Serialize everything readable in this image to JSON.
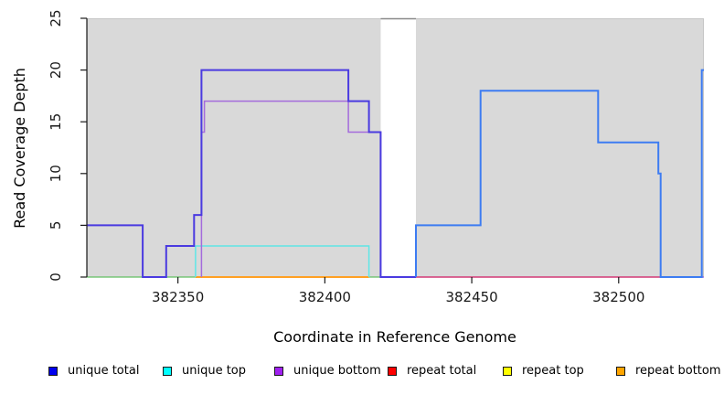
{
  "chart_data": {
    "type": "line",
    "subtype": "step-coverage",
    "title": "",
    "xlabel": "Coordinate in Reference Genome",
    "ylabel": "Read Coverage Depth",
    "xlim": [
      382319,
      382529
    ],
    "ylim": [
      0,
      25
    ],
    "x_ticks": [
      382350,
      382400,
      382450,
      382500
    ],
    "y_ticks": [
      0,
      5,
      10,
      15,
      20,
      25
    ],
    "panel_bg": "#D9D9D9",
    "border_color": "#C6C6C6",
    "axis_color": "#1A1A1A",
    "gap": {
      "from": 382419,
      "to": 382431,
      "color": "#FFFFFF",
      "top_line_color": "#8A8A8A"
    },
    "series": [
      {
        "name": "repeat top (overlaps unique top at 0)",
        "line_color": "#7CC87C",
        "width": 1.5,
        "segments": [
          [
            [
              382319,
              0
            ],
            [
              382356,
              0
            ]
          ],
          [
            [
              382415,
              0
            ],
            [
              382419,
              0
            ]
          ]
        ]
      },
      {
        "name": "repeat bottom",
        "line_color": "#FFA024",
        "width": 2,
        "segments": [
          [
            [
              382356,
              0
            ],
            [
              382415,
              0
            ]
          ]
        ]
      },
      {
        "name": "unique top",
        "line_color": "#5FE6E6",
        "width": 1.5,
        "segments": [
          [
            [
              382356,
              0
            ],
            [
              382356,
              3
            ],
            [
              382415,
              3
            ],
            [
              382415,
              0
            ]
          ]
        ]
      },
      {
        "name": "unique bottom",
        "line_color": "#A46BDC",
        "width": 1.5,
        "segments": [
          [
            [
              382358,
              0
            ],
            [
              382358,
              14
            ],
            [
              382359,
              14
            ],
            [
              382359,
              17
            ],
            [
              382408,
              17
            ],
            [
              382408,
              14
            ],
            [
              382419,
              14
            ],
            [
              382419,
              0
            ],
            [
              382529,
              0
            ]
          ]
        ]
      },
      {
        "name": "unique total (left block)",
        "line_color": "#4A3AE0",
        "width": 2,
        "segments": [
          [
            [
              382319,
              5
            ],
            [
              382338,
              5
            ],
            [
              382338,
              0
            ],
            [
              382346,
              0
            ],
            [
              382346,
              3
            ],
            [
              382355.5,
              3
            ],
            [
              382355.5,
              6
            ],
            [
              382358,
              6
            ],
            [
              382358,
              20
            ],
            [
              382408,
              20
            ],
            [
              382408,
              17
            ],
            [
              382415,
              17
            ],
            [
              382415,
              14
            ],
            [
              382419,
              14
            ],
            [
              382419,
              0
            ],
            [
              382431,
              0
            ]
          ]
        ]
      },
      {
        "name": "repeat total",
        "line_color": "#E0507A",
        "width": 1.5,
        "segments": [
          [
            [
              382431,
              0
            ],
            [
              382515,
              0
            ]
          ]
        ]
      },
      {
        "name": "unique total (right block)",
        "line_color": "#3D7CF2",
        "width": 2,
        "segments": [
          [
            [
              382431,
              0
            ],
            [
              382431,
              5
            ],
            [
              382453,
              5
            ],
            [
              382453,
              18
            ],
            [
              382493,
              18
            ],
            [
              382493,
              13
            ],
            [
              382513.5,
              13
            ],
            [
              382513.5,
              10
            ],
            [
              382514.3,
              10
            ],
            [
              382514.3,
              0
            ],
            [
              382528.3,
              0
            ],
            [
              382528.3,
              20
            ],
            [
              382529,
              20
            ]
          ]
        ]
      }
    ]
  },
  "legend": {
    "items": [
      {
        "label": "unique total",
        "color": "#0000EE"
      },
      {
        "label": "unique top",
        "color": "#00FFFF"
      },
      {
        "label": "unique bottom",
        "color": "#A020F0"
      },
      {
        "label": "repeat total",
        "color": "#FF0000"
      },
      {
        "label": "repeat top",
        "color": "#FFFF00"
      },
      {
        "label": "repeat bottom",
        "color": "#FFA500"
      }
    ]
  }
}
